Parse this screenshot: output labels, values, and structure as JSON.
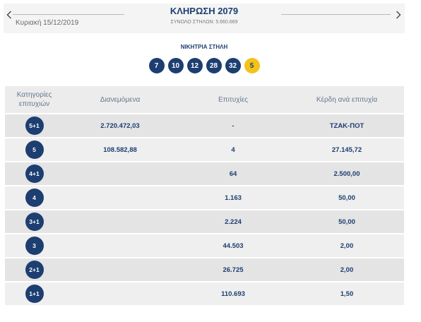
{
  "draw_header": {
    "prev_icon": "chevron-left-icon",
    "date": "Κυριακή 15/12/2019",
    "title": "ΚΛΗΡΩΣΗ 2079",
    "total_columns": "ΣΥΝΟΛΟ ΣΤΗΛΩΝ: 5.660.669",
    "next_icon": "chevron-right-icon"
  },
  "winning_column": {
    "label": "ΝΙΚΗΤΡΙΑ ΣΤΗΛΗ",
    "numbers": [
      "7",
      "10",
      "12",
      "28",
      "32"
    ],
    "joker": "5"
  },
  "results_table": {
    "headers": {
      "category": "Κατηγορίες επιτυχιών",
      "distributed": "Διανεμόμενα",
      "winners": "Επιτυχίες",
      "prize_per_winner": "Κέρδη ανά επιτυχία"
    },
    "rows": [
      {
        "category": "5+1",
        "distributed": "2.720.472,03",
        "winners": "-",
        "prize_per_winner": "ΤΖΑΚ-ΠΟΤ"
      },
      {
        "category": "5",
        "distributed": "108.582,88",
        "winners": "4",
        "prize_per_winner": "27.145,72"
      },
      {
        "category": "4+1",
        "winners": "64",
        "prize_per_winner": "2.500,00"
      },
      {
        "category": "4",
        "winners": "1.163",
        "prize_per_winner": "50,00"
      },
      {
        "category": "3+1",
        "winners": "2.224",
        "prize_per_winner": "50,00"
      },
      {
        "category": "3",
        "winners": "44.503",
        "prize_per_winner": "2,00"
      },
      {
        "category": "2+1",
        "winners": "26.725",
        "prize_per_winner": "2,00"
      },
      {
        "category": "1+1",
        "winners": "110.693",
        "prize_per_winner": "1,50"
      }
    ]
  },
  "colors": {
    "primary": "#1d3e70",
    "joker": "#f5c21b",
    "topbar_bg": "#f4f4f4",
    "header_bg": "#ececec",
    "row_dark": "#e4e4e4",
    "row_light": "#efefef"
  }
}
